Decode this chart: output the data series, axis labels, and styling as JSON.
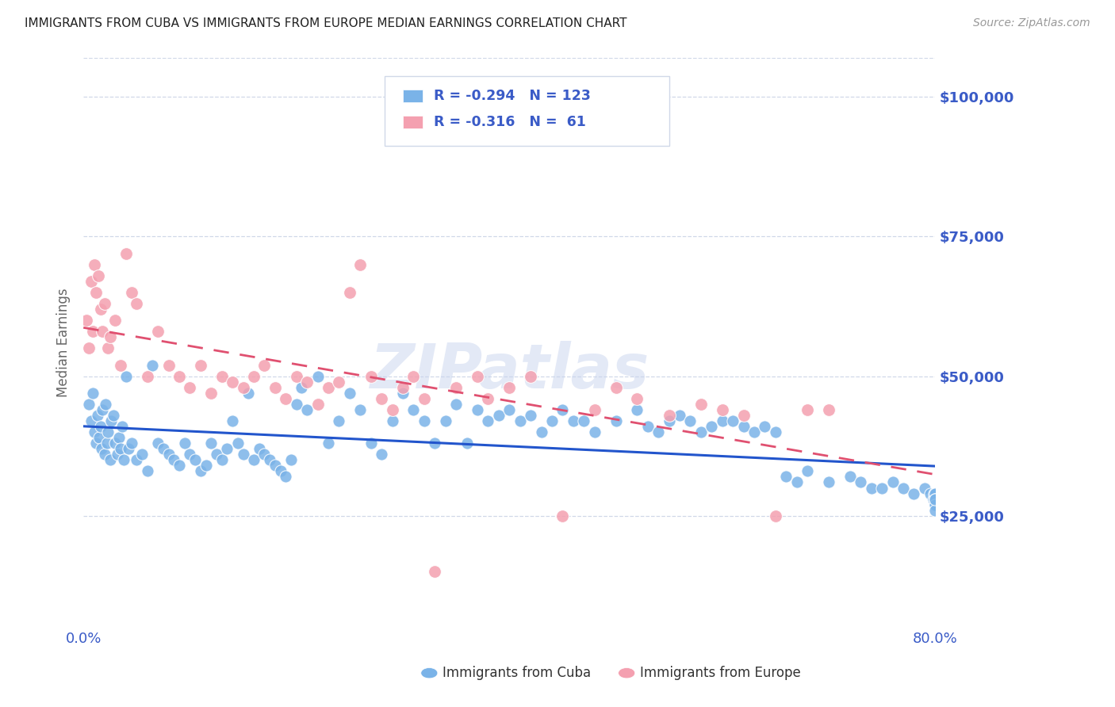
{
  "title": "IMMIGRANTS FROM CUBA VS IMMIGRANTS FROM EUROPE MEDIAN EARNINGS CORRELATION CHART",
  "source": "Source: ZipAtlas.com",
  "ylabel": "Median Earnings",
  "y_ticks": [
    25000,
    50000,
    75000,
    100000
  ],
  "y_tick_labels": [
    "$25,000",
    "$50,000",
    "$75,000",
    "$100,000"
  ],
  "x_min": 0.0,
  "x_max": 80.0,
  "y_min": 5000,
  "y_max": 107000,
  "cuba_color": "#7ab3e8",
  "europe_color": "#f4a0b0",
  "cuba_line_color": "#2255cc",
  "europe_line_color": "#e05070",
  "cuba_R": -0.294,
  "cuba_N": 123,
  "europe_R": -0.316,
  "europe_N": 61,
  "axis_label_color": "#3a5bc7",
  "title_color": "#222222",
  "legend_text_color": "#3a5bc7",
  "watermark": "ZIPatlas",
  "watermark_color": "#c8d4ee",
  "background_color": "#ffffff",
  "grid_color": "#d0d8e8",
  "cuba_scatter_x": [
    0.5,
    0.7,
    0.9,
    1.0,
    1.2,
    1.3,
    1.5,
    1.6,
    1.7,
    1.8,
    2.0,
    2.1,
    2.2,
    2.3,
    2.5,
    2.6,
    2.8,
    3.0,
    3.2,
    3.3,
    3.5,
    3.6,
    3.8,
    4.0,
    4.2,
    4.5,
    5.0,
    5.5,
    6.0,
    6.5,
    7.0,
    7.5,
    8.0,
    8.5,
    9.0,
    9.5,
    10.0,
    10.5,
    11.0,
    11.5,
    12.0,
    12.5,
    13.0,
    13.5,
    14.0,
    14.5,
    15.0,
    15.5,
    16.0,
    16.5,
    17.0,
    17.5,
    18.0,
    18.5,
    19.0,
    19.5,
    20.0,
    20.5,
    21.0,
    22.0,
    23.0,
    24.0,
    25.0,
    26.0,
    27.0,
    28.0,
    29.0,
    30.0,
    31.0,
    32.0,
    33.0,
    34.0,
    35.0,
    36.0,
    37.0,
    38.0,
    39.0,
    40.0,
    41.0,
    42.0,
    43.0,
    44.0,
    45.0,
    46.0,
    47.0,
    48.0,
    50.0,
    52.0,
    53.0,
    54.0,
    55.0,
    56.0,
    57.0,
    58.0,
    59.0,
    60.0,
    61.0,
    62.0,
    63.0,
    64.0,
    65.0,
    66.0,
    67.0,
    68.0,
    70.0,
    72.0,
    73.0,
    74.0,
    75.0,
    76.0,
    77.0,
    78.0,
    79.0,
    79.5,
    79.8,
    79.9,
    80.0,
    80.0,
    80.0,
    80.0,
    80.0,
    80.0,
    80.0
  ],
  "cuba_scatter_y": [
    45000,
    42000,
    47000,
    40000,
    38000,
    43000,
    39000,
    41000,
    37000,
    44000,
    36000,
    45000,
    38000,
    40000,
    35000,
    42000,
    43000,
    38000,
    36000,
    39000,
    37000,
    41000,
    35000,
    50000,
    37000,
    38000,
    35000,
    36000,
    33000,
    52000,
    38000,
    37000,
    36000,
    35000,
    34000,
    38000,
    36000,
    35000,
    33000,
    34000,
    38000,
    36000,
    35000,
    37000,
    42000,
    38000,
    36000,
    47000,
    35000,
    37000,
    36000,
    35000,
    34000,
    33000,
    32000,
    35000,
    45000,
    48000,
    44000,
    50000,
    38000,
    42000,
    47000,
    44000,
    38000,
    36000,
    42000,
    47000,
    44000,
    42000,
    38000,
    42000,
    45000,
    38000,
    44000,
    42000,
    43000,
    44000,
    42000,
    43000,
    40000,
    42000,
    44000,
    42000,
    42000,
    40000,
    42000,
    44000,
    41000,
    40000,
    42000,
    43000,
    42000,
    40000,
    41000,
    42000,
    42000,
    41000,
    40000,
    41000,
    40000,
    32000,
    31000,
    33000,
    31000,
    32000,
    31000,
    30000,
    30000,
    31000,
    30000,
    29000,
    30000,
    29000,
    28000,
    29000,
    28000,
    29000,
    28000,
    27000,
    27000,
    26000,
    28000
  ],
  "europe_scatter_x": [
    0.3,
    0.5,
    0.7,
    0.9,
    1.0,
    1.2,
    1.4,
    1.6,
    1.8,
    2.0,
    2.3,
    2.5,
    3.0,
    3.5,
    4.0,
    4.5,
    5.0,
    6.0,
    7.0,
    8.0,
    9.0,
    10.0,
    11.0,
    12.0,
    13.0,
    14.0,
    15.0,
    16.0,
    17.0,
    18.0,
    19.0,
    20.0,
    21.0,
    22.0,
    23.0,
    24.0,
    25.0,
    26.0,
    27.0,
    28.0,
    29.0,
    30.0,
    31.0,
    32.0,
    33.0,
    35.0,
    37.0,
    38.0,
    40.0,
    42.0,
    45.0,
    48.0,
    50.0,
    52.0,
    55.0,
    58.0,
    60.0,
    62.0,
    65.0,
    68.0,
    70.0
  ],
  "europe_scatter_y": [
    60000,
    55000,
    67000,
    58000,
    70000,
    65000,
    68000,
    62000,
    58000,
    63000,
    55000,
    57000,
    60000,
    52000,
    72000,
    65000,
    63000,
    50000,
    58000,
    52000,
    50000,
    48000,
    52000,
    47000,
    50000,
    49000,
    48000,
    50000,
    52000,
    48000,
    46000,
    50000,
    49000,
    45000,
    48000,
    49000,
    65000,
    70000,
    50000,
    46000,
    44000,
    48000,
    50000,
    46000,
    15000,
    48000,
    50000,
    46000,
    48000,
    50000,
    25000,
    44000,
    48000,
    46000,
    43000,
    45000,
    44000,
    43000,
    25000,
    44000,
    44000
  ]
}
